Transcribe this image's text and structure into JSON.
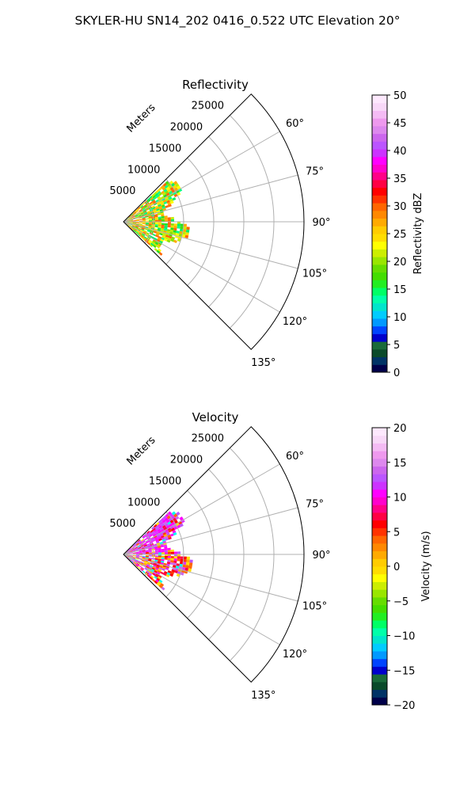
{
  "figure": {
    "suptitle": "SKYLER-HU  SN14_202  0416_0.522 UTC Elevation 20°"
  },
  "chart_data": [
    {
      "type": "polar-sector",
      "title": "Reflectivity",
      "range_label": "Meters",
      "azimuth_range_deg": [
        45,
        135
      ],
      "range_max_m": 30000,
      "azimuth_ticks": [
        "60°",
        "75°",
        "90°",
        "105°",
        "120°",
        "135°"
      ],
      "azimuth_tick_values": [
        60,
        75,
        90,
        105,
        120,
        135
      ],
      "range_ticks": [
        "5000",
        "10000",
        "15000",
        "20000",
        "25000"
      ],
      "range_tick_values": [
        5000,
        10000,
        15000,
        20000,
        25000
      ],
      "grid": true,
      "echo_extent_m": 10500,
      "colorbar": {
        "label": "Reflectivity dBZ",
        "min": 0,
        "max": 50,
        "ticks": [
          "0",
          "5",
          "10",
          "15",
          "20",
          "25",
          "30",
          "35",
          "40",
          "45",
          "50"
        ],
        "tick_values": [
          0,
          5,
          10,
          15,
          20,
          25,
          30,
          35,
          40,
          45,
          50
        ],
        "colors": [
          "#00004a",
          "#003366",
          "#0a4a2a",
          "#1a6a3a",
          "#0000cc",
          "#0044ff",
          "#0099ff",
          "#00ccff",
          "#00e5cc",
          "#00ffaa",
          "#00ff66",
          "#22ee22",
          "#44dd00",
          "#66dd00",
          "#99e600",
          "#ccee00",
          "#ffff00",
          "#ffdd00",
          "#ffcc00",
          "#ffaa00",
          "#ff8800",
          "#ff6600",
          "#ff3300",
          "#ff0000",
          "#ff0044",
          "#ff0088",
          "#ff00cc",
          "#ff00ff",
          "#cc33ff",
          "#bb55ff",
          "#cc66ee",
          "#dd88ee",
          "#ee99ee",
          "#f4bbf4",
          "#f8d8f8",
          "#fde8fd"
        ]
      }
    },
    {
      "type": "polar-sector",
      "title": "Velocity",
      "range_label": "Meters",
      "azimuth_range_deg": [
        45,
        135
      ],
      "range_max_m": 30000,
      "azimuth_ticks": [
        "60°",
        "75°",
        "90°",
        "105°",
        "120°",
        "135°"
      ],
      "azimuth_tick_values": [
        60,
        75,
        90,
        105,
        120,
        135
      ],
      "range_ticks": [
        "5000",
        "10000",
        "15000",
        "20000",
        "25000"
      ],
      "range_tick_values": [
        5000,
        10000,
        15000,
        20000,
        25000
      ],
      "grid": true,
      "echo_extent_m": 11000,
      "colorbar": {
        "label": "Velocity (m/s)",
        "min": -20,
        "max": 20,
        "ticks": [
          "−20",
          "−15",
          "−10",
          "−5",
          "0",
          "5",
          "10",
          "15",
          "20"
        ],
        "tick_values": [
          -20,
          -15,
          -10,
          -5,
          0,
          5,
          10,
          15,
          20
        ],
        "colors": [
          "#00004a",
          "#003366",
          "#0a4a2a",
          "#1a6a3a",
          "#0000cc",
          "#0044ff",
          "#0099ff",
          "#00ccff",
          "#00e5cc",
          "#00ffaa",
          "#00ff66",
          "#22ee22",
          "#44dd00",
          "#66dd00",
          "#99e600",
          "#ccee00",
          "#ffff00",
          "#ffdd00",
          "#ffcc00",
          "#ffaa00",
          "#ff8800",
          "#ff6600",
          "#ff3300",
          "#ff0000",
          "#ff0044",
          "#ff0088",
          "#ff00cc",
          "#ff00ff",
          "#cc33ff",
          "#bb55ff",
          "#cc66ee",
          "#dd88ee",
          "#ee99ee",
          "#f4bbf4",
          "#f8d8f8",
          "#fde8fd"
        ]
      }
    }
  ]
}
